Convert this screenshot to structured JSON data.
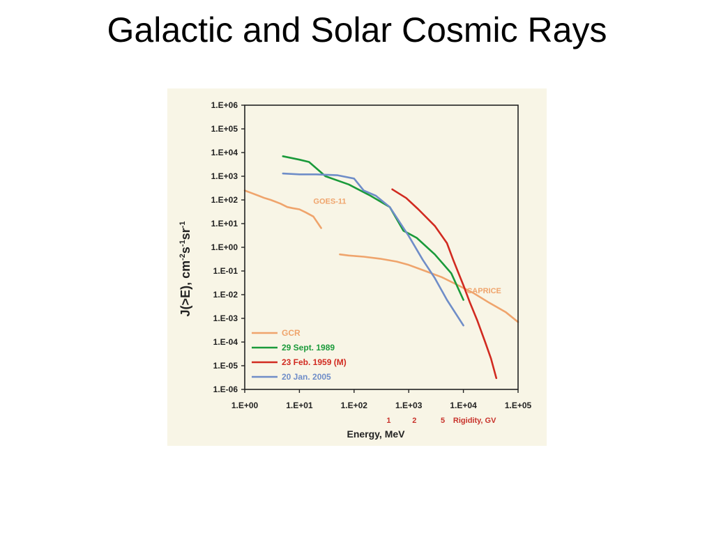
{
  "slide": {
    "title": "Galactic and Solar Cosmic Rays"
  },
  "colors": {
    "panel_bg": "#f8f5e6",
    "gcr": "#efa46c",
    "sept1989": "#1a9a3a",
    "feb1959": "#d12a20",
    "jan2005": "#6f8dc8",
    "rigidity_text": "#c8312a"
  },
  "chart_data": {
    "type": "line",
    "xscale": "log",
    "yscale": "log",
    "xlim": [
      1,
      100000
    ],
    "ylim": [
      1e-06,
      1000000
    ],
    "xlabel": "Energy, MeV",
    "ylabel_main": "J(>E), cm",
    "ylabel_sup1": "-2",
    "ylabel_s": "s",
    "ylabel_sup2": "-1",
    "ylabel_sr": "sr",
    "ylabel_sup3": "-1",
    "x_ticks": [
      1,
      10,
      100,
      1000,
      10000,
      100000
    ],
    "x_tick_labels": [
      "1.E+00",
      "1.E+01",
      "1.E+02",
      "1.E+03",
      "1.E+04",
      "1.E+05"
    ],
    "y_ticks": [
      1000000,
      100000,
      10000,
      1000,
      100,
      10,
      1,
      0.1,
      0.01,
      0.001,
      0.0001,
      1e-05,
      1e-06
    ],
    "y_tick_labels": [
      "1.E+06",
      "1.E+05",
      "1.E+04",
      "1.E+03",
      "1.E+02",
      "1.E+01",
      "1.E+00",
      "1.E-01",
      "1.E-02",
      "1.E-03",
      "1.E-04",
      "1.E-05",
      "1.E-06"
    ],
    "rigidity_axis": {
      "ticks": [
        {
          "label": "1",
          "energy": 430
        },
        {
          "label": "2",
          "energy": 1270
        },
        {
          "label": "5",
          "energy": 4200
        }
      ],
      "title": "Rigidity,  GV"
    },
    "annotations": [
      {
        "text": "GOES-11",
        "x": 18,
        "y": 90,
        "color_key": "gcr"
      },
      {
        "text": "CAPRICE",
        "x": 11500,
        "y": 0.015,
        "color_key": "gcr"
      }
    ],
    "series": [
      {
        "name": "GCR",
        "color_key": "gcr",
        "segments": [
          {
            "x": [
              1,
              1.3,
              1.8,
              2.3,
              3,
              4.5,
              6,
              7.5,
              10,
              13,
              18,
              25
            ],
            "y": [
              250,
              200,
              150,
              120,
              100,
              70,
              50,
              45,
              40,
              30,
              20,
              6.5
            ]
          },
          {
            "x": [
              55,
              80,
              150,
              300,
              600,
              1000,
              2000,
              4000,
              8000,
              15000,
              30000,
              60000,
              100000
            ],
            "y": [
              0.5,
              0.45,
              0.4,
              0.33,
              0.25,
              0.18,
              0.1,
              0.055,
              0.025,
              0.012,
              0.0045,
              0.0018,
              0.0007
            ]
          }
        ]
      },
      {
        "name": "29 Sept. 1989",
        "color_key": "sept1989",
        "segments": [
          {
            "x": [
              5,
              10,
              15,
              30,
              80,
              200,
              450,
              800,
              1400,
              3000,
              6000,
              10000
            ],
            "y": [
              7000,
              5000,
              4000,
              1000,
              450,
              150,
              50,
              5,
              2.5,
              0.5,
              0.08,
              0.006
            ]
          }
        ]
      },
      {
        "name": "23 Feb. 1959 (M)",
        "color_key": "feb1959",
        "segments": [
          {
            "x": [
              500,
              900,
              1500,
              3000,
              5000,
              6500,
              8000,
              10000,
              13000,
              18000,
              25000,
              32000,
              40000
            ],
            "y": [
              280,
              120,
              40,
              8,
              1.5,
              0.3,
              0.09,
              0.025,
              0.005,
              0.0008,
              0.0001,
              2e-05,
              3e-06
            ]
          }
        ]
      },
      {
        "name": "20 Jan. 2005",
        "color_key": "jan2005",
        "segments": [
          {
            "x": [
              5,
              10,
              20,
              50,
              100,
              150,
              250,
              450,
              1000,
              1800,
              3000,
              5000,
              10000
            ],
            "y": [
              1300,
              1200,
              1200,
              1100,
              800,
              250,
              150,
              50,
              3,
              0.3,
              0.05,
              0.006,
              0.0005
            ]
          }
        ]
      }
    ],
    "legend": {
      "placement": "bottom-left",
      "order": [
        "GCR",
        "29 Sept. 1989",
        "23 Feb. 1959 (M)",
        "20 Jan. 2005"
      ]
    }
  }
}
